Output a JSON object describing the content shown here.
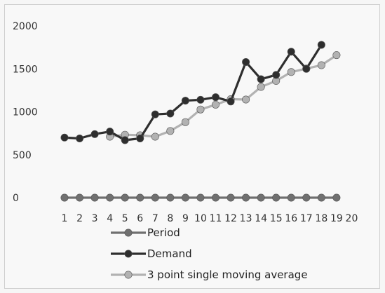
{
  "chart_data": {
    "type": "line",
    "x": [
      1,
      2,
      3,
      4,
      5,
      6,
      7,
      8,
      9,
      10,
      11,
      12,
      13,
      14,
      15,
      16,
      17,
      18,
      19,
      20
    ],
    "x_tick_labels": [
      "1",
      "2",
      "3",
      "4",
      "5",
      "6",
      "7",
      "8",
      "9",
      "10",
      "11",
      "12",
      "13",
      "14",
      "15",
      "16",
      "17",
      "18",
      "19",
      "20"
    ],
    "y_tick_labels": [
      "0",
      "500",
      "1000",
      "1500",
      "2000"
    ],
    "ylim": [
      0,
      2000
    ],
    "grid": false,
    "legend_position": "bottom",
    "series": [
      {
        "name": "Period",
        "color": "#707070",
        "x": [
          1,
          2,
          3,
          4,
          5,
          6,
          7,
          8,
          9,
          10,
          11,
          12,
          13,
          14,
          15,
          16,
          17,
          18,
          19
        ],
        "values": [
          0,
          0,
          0,
          0,
          0,
          0,
          0,
          0,
          0,
          0,
          0,
          0,
          0,
          0,
          0,
          0,
          0,
          0,
          0
        ]
      },
      {
        "name": "Demand",
        "color": "#2e2e2e",
        "x": [
          1,
          2,
          3,
          4,
          5,
          6,
          7,
          8,
          9,
          10,
          11,
          12,
          13,
          14,
          15,
          16,
          17,
          18
        ],
        "values": [
          700,
          690,
          740,
          770,
          670,
          690,
          970,
          980,
          1130,
          1140,
          1170,
          1120,
          1580,
          1380,
          1430,
          1700,
          1500,
          1780
        ]
      },
      {
        "name": "3 point single moving average",
        "color": "#b2b2b2",
        "x": [
          4,
          5,
          6,
          7,
          8,
          9,
          10,
          11,
          12,
          13,
          14,
          15,
          16,
          17,
          18,
          19
        ],
        "values": [
          710,
          733,
          727,
          710,
          777,
          880,
          1027,
          1083,
          1147,
          1143,
          1290,
          1360,
          1463,
          1503,
          1543,
          1660
        ]
      }
    ]
  }
}
